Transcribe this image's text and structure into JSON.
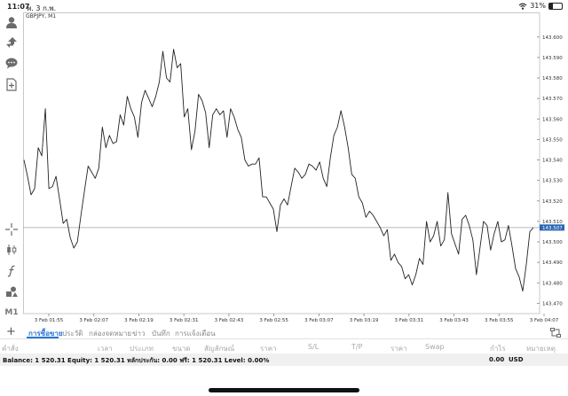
{
  "status_bar": {
    "time": "11:07",
    "date": "พ. 3 ก.พ.",
    "battery": "31%",
    "battery_level": 0.31,
    "icons": [
      "wifi-icon",
      "battery-icon"
    ]
  },
  "toolbar": {
    "icons": [
      "account-icon",
      "trade-icon",
      "chat-icon",
      "new-document-icon",
      "crosshair-icon",
      "candlestick-icon",
      "indicator-icon",
      "objects-icon"
    ],
    "timeframe": "M1"
  },
  "chart": {
    "symbol": "GBPJPY, M1",
    "current_price": "143.507",
    "colors": {
      "line": "#222222",
      "bid_line": "#9aa2ad",
      "price_tag": "#2b66b5",
      "grid": "#e0e0e0"
    }
  },
  "chart_data": {
    "type": "line",
    "title": "GBPJPY, M1",
    "xlabel": "",
    "ylabel": "",
    "ylim": [
      143.465,
      143.612
    ],
    "y_ticks": [
      "143.600",
      "143.590",
      "143.580",
      "143.570",
      "143.560",
      "143.550",
      "143.540",
      "143.530",
      "143.520",
      "143.510",
      "143.500",
      "143.490",
      "143.480",
      "143.470"
    ],
    "x_ticks": [
      "3 Feb 01:55",
      "3 Feb 02:07",
      "3 Feb 02:19",
      "3 Feb 02:31",
      "3 Feb 02:43",
      "3 Feb 02:55",
      "3 Feb 03:07",
      "3 Feb 03:19",
      "3 Feb 03:31",
      "3 Feb 03:43",
      "3 Feb 03:55",
      "3 Feb 04:07"
    ],
    "grid": false,
    "bid_line": 143.507,
    "series": [
      {
        "values": [
          143.54,
          143.532,
          143.523,
          143.526,
          143.546,
          143.542,
          143.565,
          143.526,
          143.527,
          143.532,
          143.521,
          143.509,
          143.511,
          143.502,
          143.497,
          143.5,
          143.513,
          143.525,
          143.537,
          143.534,
          143.531,
          143.536,
          143.556,
          143.546,
          143.552,
          143.548,
          143.549,
          143.562,
          143.557,
          143.571,
          143.565,
          143.561,
          143.551,
          143.568,
          143.574,
          143.57,
          143.566,
          143.571,
          143.578,
          143.593,
          143.58,
          143.578,
          143.594,
          143.585,
          143.587,
          143.561,
          143.565,
          143.545,
          143.554,
          143.572,
          143.569,
          143.563,
          143.546,
          143.562,
          143.565,
          143.562,
          143.564,
          143.551,
          143.565,
          143.561,
          143.555,
          143.551,
          143.54,
          143.537,
          143.538,
          143.538,
          143.541,
          143.522,
          143.522,
          143.519,
          143.516,
          143.505,
          143.518,
          143.521,
          143.518,
          143.527,
          143.536,
          143.534,
          143.531,
          143.533,
          143.538,
          143.537,
          143.535,
          143.539,
          143.531,
          143.527,
          143.541,
          143.552,
          143.556,
          143.564,
          143.556,
          143.546,
          143.533,
          143.531,
          143.522,
          143.519,
          143.512,
          143.515,
          143.513,
          143.51,
          143.507,
          143.503,
          143.506,
          143.491,
          143.494,
          143.49,
          143.488,
          143.482,
          143.484,
          143.479,
          143.484,
          143.492,
          143.489,
          143.51,
          143.5,
          143.503,
          143.51,
          143.498,
          143.501,
          143.524,
          143.504,
          143.499,
          143.494,
          143.511,
          143.513,
          143.508,
          143.501,
          143.484,
          143.497,
          143.51,
          143.508,
          143.496,
          143.504,
          143.51,
          143.5,
          143.501,
          143.508,
          143.498,
          143.487,
          143.483,
          143.476,
          143.489,
          143.505,
          143.507
        ]
      }
    ]
  },
  "bottom": {
    "plus_label": "+",
    "tabs": [
      "การซื้อขาย",
      "ประวัติ",
      "กล่องจดหมาย",
      "ข่าว",
      "บันทึก",
      "การแจ้งเตือน"
    ],
    "active_tab": 0,
    "columns": [
      "คำสั่ง",
      "เวลา",
      "ประเภท",
      "ขนาด",
      "สัญลักษณ์",
      "ราคา",
      "S/L",
      "T/P",
      "ราคา",
      "Swap",
      "กำไร",
      "หมายเหตุ"
    ],
    "balance_text": "Balance: 1 520.31 Equity: 1 520.31 หลักประกัน: 0.00 ฟรี: 1 520.31 Level: 0.00%",
    "balance_profit": "0.00",
    "balance_currency": "USD"
  }
}
